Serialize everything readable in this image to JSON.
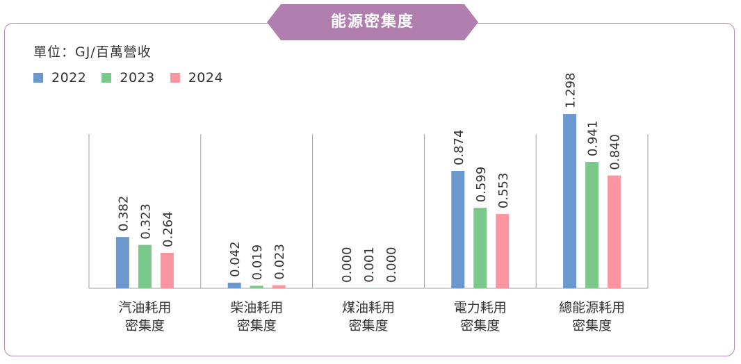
{
  "title": "能源密集度",
  "unit_label": "單位：GJ/百萬營收",
  "colors": {
    "accent": "#b07faf",
    "border": "#b48ab4",
    "axis": "#a0a0a0"
  },
  "chart_data": {
    "type": "bar",
    "categories": [
      [
        "汽油耗用",
        "密集度"
      ],
      [
        "柴油耗用",
        "密集度"
      ],
      [
        "煤油耗用",
        "密集度"
      ],
      [
        "電力耗用",
        "密集度"
      ],
      [
        "總能源耗用",
        "密集度"
      ]
    ],
    "series": [
      {
        "name": "2022",
        "color": "#6b98cf",
        "values": [
          0.382,
          0.042,
          0.0,
          0.874,
          1.298
        ],
        "labels": [
          "0.382",
          "0.042",
          "0.000",
          "0.874",
          "1.298"
        ]
      },
      {
        "name": "2023",
        "color": "#7ac88a",
        "values": [
          0.323,
          0.019,
          0.001,
          0.599,
          0.941
        ],
        "labels": [
          "0.323",
          "0.019",
          "0.001",
          "0.599",
          "0.941"
        ]
      },
      {
        "name": "2024",
        "color": "#fb95a1",
        "values": [
          0.264,
          0.023,
          0.0,
          0.553,
          0.84
        ],
        "labels": [
          "0.264",
          "0.023",
          "0.000",
          "0.553",
          "0.840"
        ]
      }
    ],
    "ylim": [
      0,
      1.5
    ],
    "grid": false,
    "legend_position": "top-left",
    "value_labels": "rotated"
  }
}
